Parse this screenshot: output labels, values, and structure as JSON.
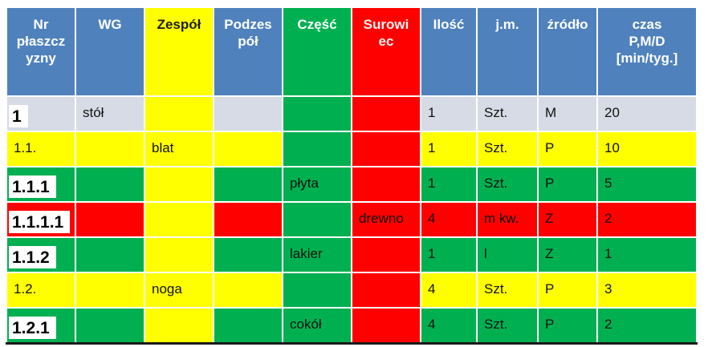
{
  "headers": {
    "nr": "Nr płaszczyzny",
    "wg": "WG",
    "zespol": "Zespół",
    "podzespol": "Podzespół",
    "czesc": "Część",
    "surowiec": "Surowiec",
    "ilosc": "Ilość",
    "jm": "j.m.",
    "zrodlo": "źródło",
    "czas": "czas P,M/D [min/tyg.]"
  },
  "header_lines": {
    "nr": [
      "Nr",
      "płaszcz",
      "yzny"
    ],
    "podzespol": [
      "Podzes",
      "pół"
    ],
    "surowiec": [
      "Surowi",
      "ec"
    ],
    "czas": [
      "czas",
      "P,M/D",
      "[min/tyg.]"
    ]
  },
  "rows": [
    {
      "nr": "1",
      "wg": "stół",
      "zespol": "",
      "podzespol": "",
      "czesc": "",
      "surowiec": "",
      "ilosc": "1",
      "jm": "Szt.",
      "zrodlo": "M",
      "czas": "20"
    },
    {
      "nr": "1.1.",
      "wg": "",
      "zespol": "blat",
      "podzespol": "",
      "czesc": "",
      "surowiec": "",
      "ilosc": "1",
      "jm": "Szt.",
      "zrodlo": "P",
      "czas": "10"
    },
    {
      "nr": "1.1.1",
      "wg": "",
      "zespol": "",
      "podzespol": "",
      "czesc": "płyta",
      "surowiec": "",
      "ilosc": "1",
      "jm": "Szt.",
      "zrodlo": "P",
      "czas": "5"
    },
    {
      "nr": "1.1.1.1",
      "wg": "",
      "zespol": "",
      "podzespol": "",
      "czesc": "",
      "surowiec": "drewno",
      "ilosc": "4",
      "jm": "m kw.",
      "zrodlo": "Z",
      "czas": "2"
    },
    {
      "nr": "1.1.2",
      "wg": "",
      "zespol": "",
      "podzespol": "",
      "czesc": "lakier",
      "surowiec": "",
      "ilosc": "1",
      "jm": "l",
      "zrodlo": "Z",
      "czas": "1"
    },
    {
      "nr": "1.2.",
      "wg": "",
      "zespol": "noga",
      "podzespol": "",
      "czesc": "",
      "surowiec": "",
      "ilosc": "4",
      "jm": "Szt.",
      "zrodlo": "P",
      "czas": "3"
    },
    {
      "nr": "1.2.1",
      "wg": "",
      "zespol": "",
      "podzespol": "",
      "czesc": "cokół",
      "surowiec": "",
      "ilosc": "4",
      "jm": "Szt.",
      "zrodlo": "P",
      "czas": "2"
    }
  ],
  "colors": {
    "header_blue": "#4f81bd",
    "yellow": "#ffff00",
    "green": "#00b050",
    "red": "#ff0000",
    "grey": "#d6dbe5"
  }
}
